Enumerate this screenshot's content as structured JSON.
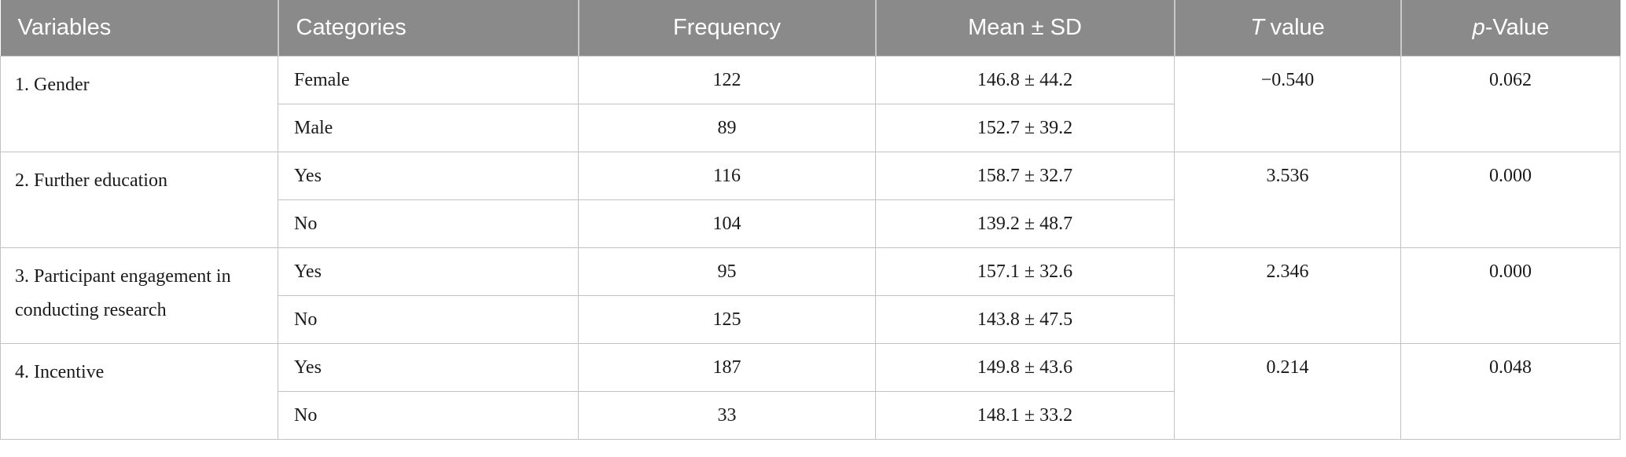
{
  "page": {
    "background": "#ffffff"
  },
  "colors": {
    "header_bg": "#8a8a8a",
    "header_text": "#ffffff",
    "border": "#c3c3c3",
    "header_divider": "#c9c9c9",
    "body_text": "#1a1a1a"
  },
  "table": {
    "header": {
      "variables": "Variables",
      "categories": "Categories",
      "frequency": "Frequency",
      "mean_sd": "Mean ± SD",
      "t_italic": "T",
      "t_rest": "value",
      "p_italic": "p",
      "p_rest": "-Value"
    },
    "groups": [
      {
        "variable": "1. Gender",
        "t_value": "−0.540",
        "p_value": "0.062",
        "rows": [
          {
            "category": "Female",
            "frequency": "122",
            "mean_sd": "146.8 ± 44.2"
          },
          {
            "category": "Male",
            "frequency": "89",
            "mean_sd": "152.7 ± 39.2"
          }
        ]
      },
      {
        "variable": "2. Further education",
        "t_value": "3.536",
        "p_value": "0.000",
        "rows": [
          {
            "category": "Yes",
            "frequency": "116",
            "mean_sd": "158.7 ± 32.7"
          },
          {
            "category": "No",
            "frequency": "104",
            "mean_sd": "139.2 ± 48.7"
          }
        ]
      },
      {
        "variable": "3. Participant engagement in conducting research",
        "t_value": "2.346",
        "p_value": "0.000",
        "rows": [
          {
            "category": "Yes",
            "frequency": "95",
            "mean_sd": "157.1 ± 32.6"
          },
          {
            "category": "No",
            "frequency": "125",
            "mean_sd": "143.8 ± 47.5"
          }
        ]
      },
      {
        "variable": "4. Incentive",
        "t_value": "0.214",
        "p_value": "0.048",
        "rows": [
          {
            "category": "Yes",
            "frequency": "187",
            "mean_sd": "149.8 ± 43.6"
          },
          {
            "category": "No",
            "frequency": "33",
            "mean_sd": "148.1 ± 33.2"
          }
        ]
      }
    ]
  }
}
